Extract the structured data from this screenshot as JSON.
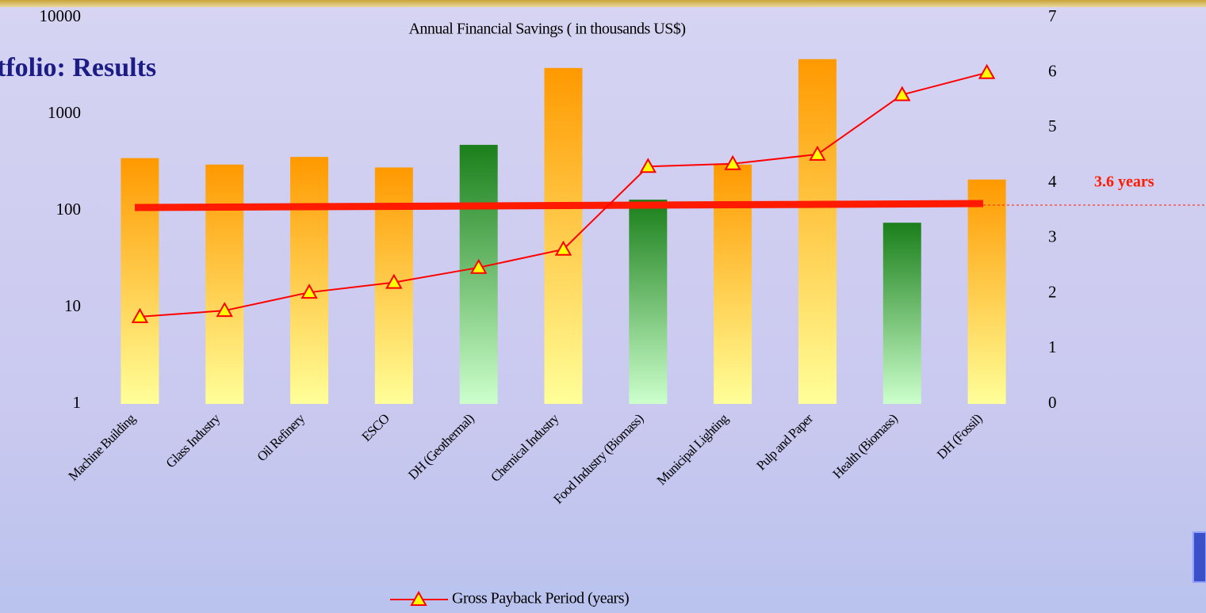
{
  "slide_title": "tfolio: Results",
  "chart_data": {
    "type": "bar_line",
    "title": "Annual Financial Savings ( in thousands US$)",
    "categories": [
      "Machine Building",
      "Glass Industry",
      "Oil Refinery",
      "ESCO",
      "DH (Geothermal)",
      "Chemical Industry",
      "Food Industry (Biomass)",
      "Municipal Lighting",
      "Pulp and Paper",
      "Health (Biomass)",
      "DH (Fossil)"
    ],
    "series": [
      {
        "type": "bar",
        "axis": "y",
        "colors": [
          "#ff9900",
          "#ff9900",
          "#ff9900",
          "#ff9900",
          "#1a7f1a",
          "#ff9900",
          "#1a7f1a",
          "#ff9900",
          "#ff9900",
          "#1a7f1a",
          "#ff9900"
        ],
        "values": [
          350,
          300,
          360,
          280,
          480,
          3000,
          130,
          300,
          3700,
          75,
          210
        ]
      },
      {
        "type": "line",
        "axis": "y2",
        "name": "Gross Payback Period (years)",
        "color": "#ff0000",
        "marker_color": "#ffff00",
        "values": [
          1.58,
          1.69,
          2.02,
          2.2,
          2.47,
          2.8,
          4.3,
          4.35,
          4.52,
          5.6,
          6.0
        ]
      }
    ],
    "log_scale": true,
    "ylim": [
      1,
      10000
    ],
    "yticks": [
      1,
      10,
      100,
      1000,
      10000
    ],
    "y2lim": [
      0,
      7
    ],
    "y2ticks": [
      0,
      1,
      2,
      3,
      4,
      5,
      6,
      7
    ],
    "average_payback": {
      "value": 3.6,
      "label": "3.6 years",
      "color": "#ff1a00"
    }
  }
}
